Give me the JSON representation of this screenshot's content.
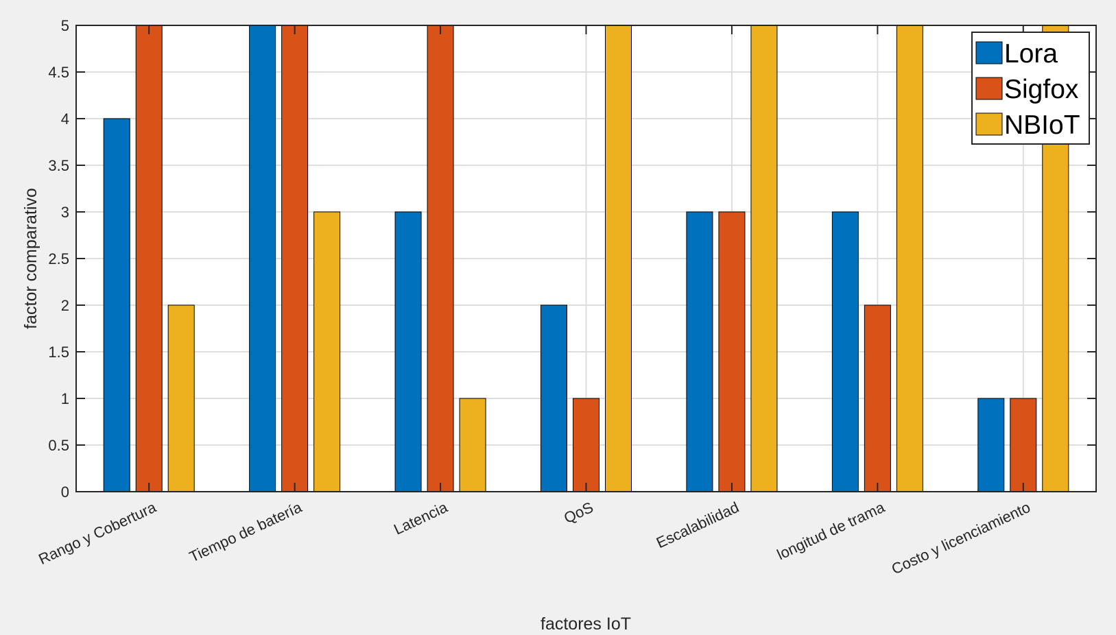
{
  "chart_data": {
    "type": "bar",
    "title": "",
    "xlabel": "factores IoT",
    "ylabel": "factor comparativo",
    "ylim": [
      0,
      5
    ],
    "yticks": [
      "0",
      "0.5",
      "1",
      "1.5",
      "2",
      "2.5",
      "3",
      "3.5",
      "4",
      "4.5",
      "5"
    ],
    "grid": true,
    "legend_position": "top-right",
    "categories": [
      "Rango y Cobertura",
      "Tiempo de batería",
      "Latencia",
      "QoS",
      "Escalabilidad",
      "longitud de trama",
      "Costo y licenciamiento"
    ],
    "series": [
      {
        "name": "Lora",
        "color": "#0072bd",
        "values": [
          4,
          5,
          3,
          2,
          3,
          3,
          1
        ]
      },
      {
        "name": "Sigfox",
        "color": "#d95319",
        "values": [
          5,
          5,
          5,
          1,
          3,
          2,
          1
        ]
      },
      {
        "name": "NBIoT",
        "color": "#edb120",
        "values": [
          2,
          3,
          1,
          5,
          5,
          5,
          5
        ]
      }
    ]
  }
}
